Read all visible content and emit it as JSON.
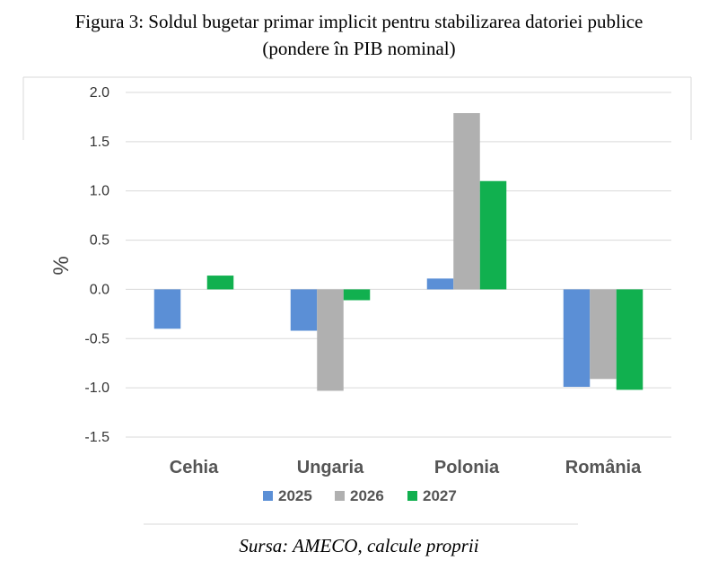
{
  "title_line1": "Figura 3: Soldul bugetar primar implicit pentru stabilizarea datoriei publice",
  "title_line2": "(pondere în PIB nominal)",
  "source": "Sursa: AMECO, calcule proprii",
  "colors": {
    "s2025": "#5b8fd6",
    "s2026": "#b0b0b0",
    "s2027": "#11b04f",
    "grid": "#d9d9d9",
    "frame": "#d9d9d9"
  },
  "chart_data": {
    "type": "bar",
    "ylabel": "%",
    "ylim": [
      -1.5,
      2.0
    ],
    "yticks": [
      "2.0",
      "1.5",
      "1.0",
      "0.5",
      "0.0",
      "-0.5",
      "-1.0",
      "-1.5"
    ],
    "categories": [
      "Cehia",
      "Ungaria",
      "Polonia",
      "România"
    ],
    "series": [
      {
        "name": "2025",
        "values": [
          -0.4,
          -0.42,
          0.11,
          -0.99
        ]
      },
      {
        "name": "2026",
        "values": [
          0.0,
          -1.03,
          1.79,
          -0.91
        ]
      },
      {
        "name": "2027",
        "values": [
          0.14,
          -0.11,
          1.1,
          -1.02
        ]
      }
    ],
    "grid": true,
    "legend": "bottom"
  }
}
